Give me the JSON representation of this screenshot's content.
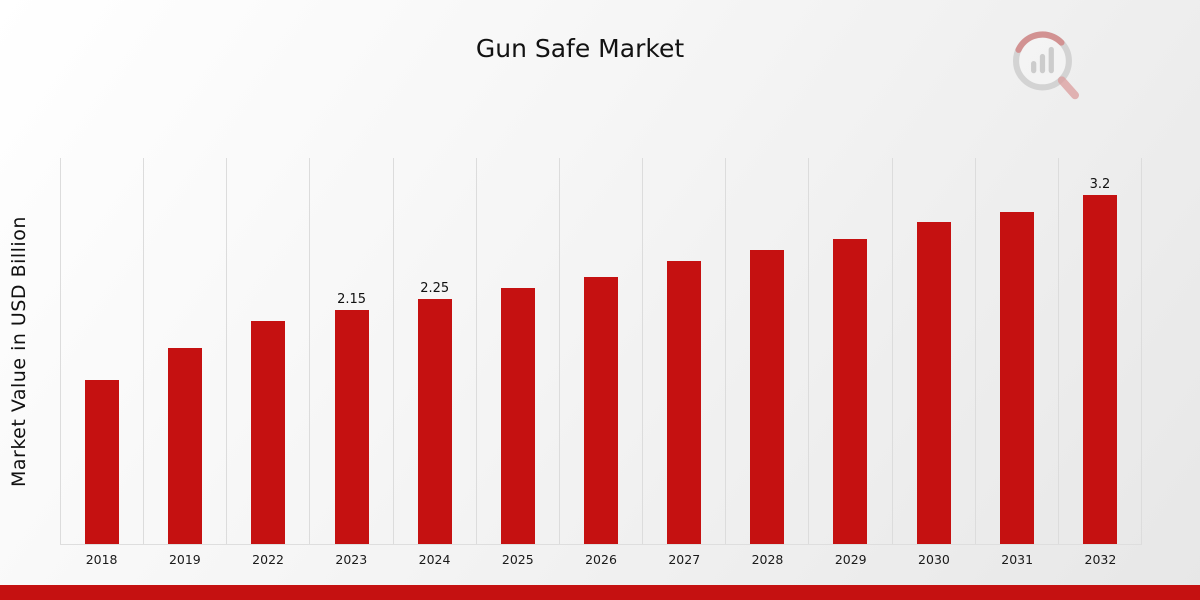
{
  "chart_data": {
    "type": "bar",
    "title": "Gun Safe Market",
    "ylabel": "Market Value in USD Billion",
    "xlabel": "",
    "categories": [
      "2018",
      "2019",
      "2022",
      "2023",
      "2024",
      "2025",
      "2026",
      "2027",
      "2028",
      "2029",
      "2030",
      "2031",
      "2032"
    ],
    "values": [
      1.5,
      1.8,
      2.05,
      2.15,
      2.25,
      2.35,
      2.45,
      2.6,
      2.7,
      2.8,
      2.95,
      3.05,
      3.2
    ],
    "bar_labels": {
      "2023": "2.15",
      "2024": "2.25",
      "2032": "3.2"
    },
    "bar_color": "#C51111",
    "ylim": [
      0,
      3.55
    ],
    "grid": "vertical-lines",
    "legend": "none"
  },
  "branding": {
    "logo_icon": "chart-magnifier-logo-icon",
    "footer_stripe_color": "#C51111"
  }
}
